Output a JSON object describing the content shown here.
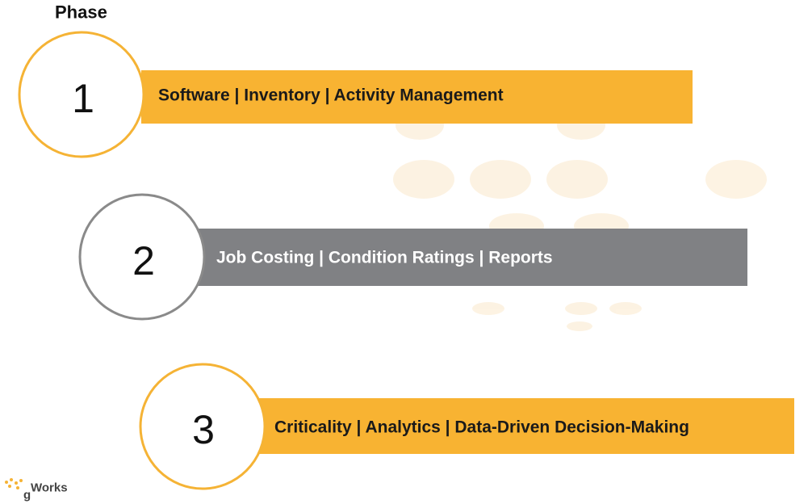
{
  "header": {
    "title": "Phase"
  },
  "phases": [
    {
      "number": "1",
      "label": "Software | Inventory | Activity Management"
    },
    {
      "number": "2",
      "label": "Job Costing | Condition Ratings | Reports"
    },
    {
      "number": "3",
      "label": "Criticality | Analytics | Data-Driven Decision-Making"
    }
  ],
  "logo": {
    "mark": "g",
    "text": "Works"
  }
}
